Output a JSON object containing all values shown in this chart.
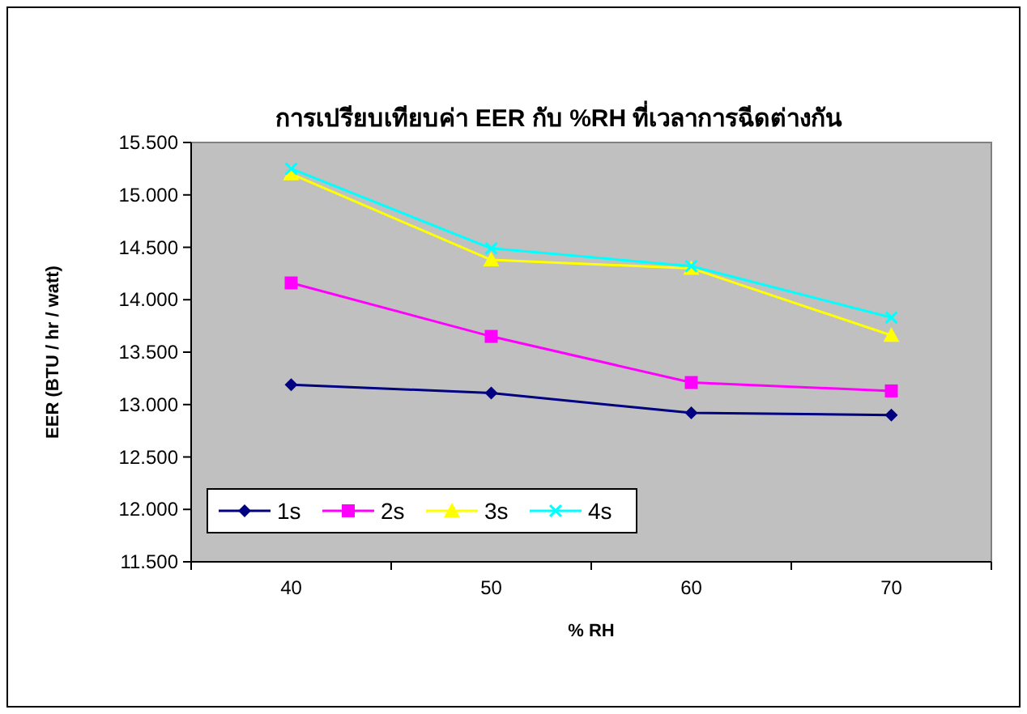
{
  "chart_data": {
    "type": "line",
    "title": "การเปรียบเทียบค่า EER กับ %RH ที่เวลาการฉีดต่างกัน",
    "xlabel": "% RH",
    "ylabel": "EER (BTU / hr / watt)",
    "categories": [
      "40",
      "50",
      "60",
      "70"
    ],
    "series": [
      {
        "name": "1s",
        "color": "#000080",
        "marker": "diamond",
        "values": [
          13.19,
          13.11,
          12.92,
          12.9
        ]
      },
      {
        "name": "2s",
        "color": "#ff00ff",
        "marker": "square",
        "values": [
          14.16,
          13.65,
          13.21,
          13.13
        ]
      },
      {
        "name": "3s",
        "color": "#ffff00",
        "marker": "triangle",
        "values": [
          15.2,
          14.38,
          14.3,
          13.66
        ]
      },
      {
        "name": "4s",
        "color": "#00ffff",
        "marker": "cross",
        "values": [
          15.25,
          14.49,
          14.32,
          13.83
        ]
      }
    ],
    "ylim": [
      11.5,
      15.5
    ],
    "yticks": [
      {
        "value": 11.5,
        "label": "11.500"
      },
      {
        "value": 12,
        "label": "12.000"
      },
      {
        "value": 12.5,
        "label": "12.500"
      },
      {
        "value": 13,
        "label": "13.000"
      },
      {
        "value": 13.5,
        "label": "13.500"
      },
      {
        "value": 14,
        "label": "14.000"
      },
      {
        "value": 14.5,
        "label": "14.500"
      },
      {
        "value": 15,
        "label": "15.000"
      },
      {
        "value": 15.5,
        "label": "15.500"
      }
    ],
    "grid": false,
    "legend": "bottom left"
  }
}
